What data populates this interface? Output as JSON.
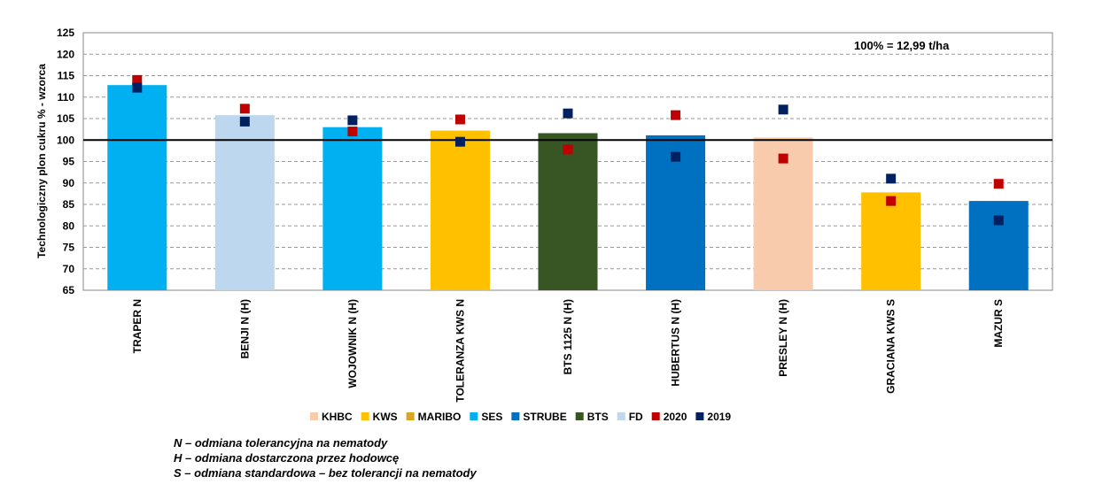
{
  "chart_data": {
    "type": "bar",
    "ylabel": "Technologiczny  plon cukru % - wzorca",
    "ylim": [
      65,
      125
    ],
    "yticks": [
      65,
      70,
      75,
      80,
      85,
      90,
      95,
      100,
      105,
      110,
      115,
      120,
      125
    ],
    "grid": true,
    "reference_line": 100,
    "annotation": "100% = 12,99 t/ha",
    "categories": [
      "TRAPER N",
      "BENJI N (H)",
      "WOJOWNIK N (H)",
      "TOLERANZA KWS N",
      "BTS 1125 N (H)",
      "HUBERTUS N (H)",
      "PRESLEY N (H)",
      "GRACIANA KWS S",
      "MAZUR S"
    ],
    "bar_values": [
      112.8,
      105.8,
      103.0,
      102.2,
      101.6,
      101.1,
      100.6,
      87.8,
      85.8
    ],
    "bar_groups": [
      "SES",
      "FD",
      "SES",
      "KWS",
      "BTS",
      "STRUBE",
      "KHBC",
      "KWS",
      "STRUBE"
    ],
    "series": [
      {
        "name": "2020",
        "values": [
          114.0,
          107.3,
          102.0,
          104.8,
          97.8,
          105.8,
          95.7,
          85.8,
          89.8
        ]
      },
      {
        "name": "2019",
        "values": [
          112.2,
          104.3,
          104.6,
          99.6,
          106.2,
          96.1,
          107.1,
          91.0,
          81.3
        ]
      }
    ],
    "legend_position": "bottom",
    "legend": [
      {
        "name": "KHBC",
        "color": "#F8CBAD"
      },
      {
        "name": "KWS",
        "color": "#FFC000"
      },
      {
        "name": "MARIBO",
        "color": "#DAA520"
      },
      {
        "name": "SES",
        "color": "#00B0F0"
      },
      {
        "name": "STRUBE",
        "color": "#0070C0"
      },
      {
        "name": "BTS",
        "color": "#375623"
      },
      {
        "name": "FD",
        "color": "#BDD7EE"
      },
      {
        "name": "2020",
        "color": "#C00000"
      },
      {
        "name": "2019",
        "color": "#002060"
      }
    ]
  },
  "footnotes": [
    "N – odmiana tolerancyjna na nematody",
    "H – odmiana dostarczona przez hodowcę",
    "S – odmiana standardowa – bez tolerancji na nematody"
  ]
}
